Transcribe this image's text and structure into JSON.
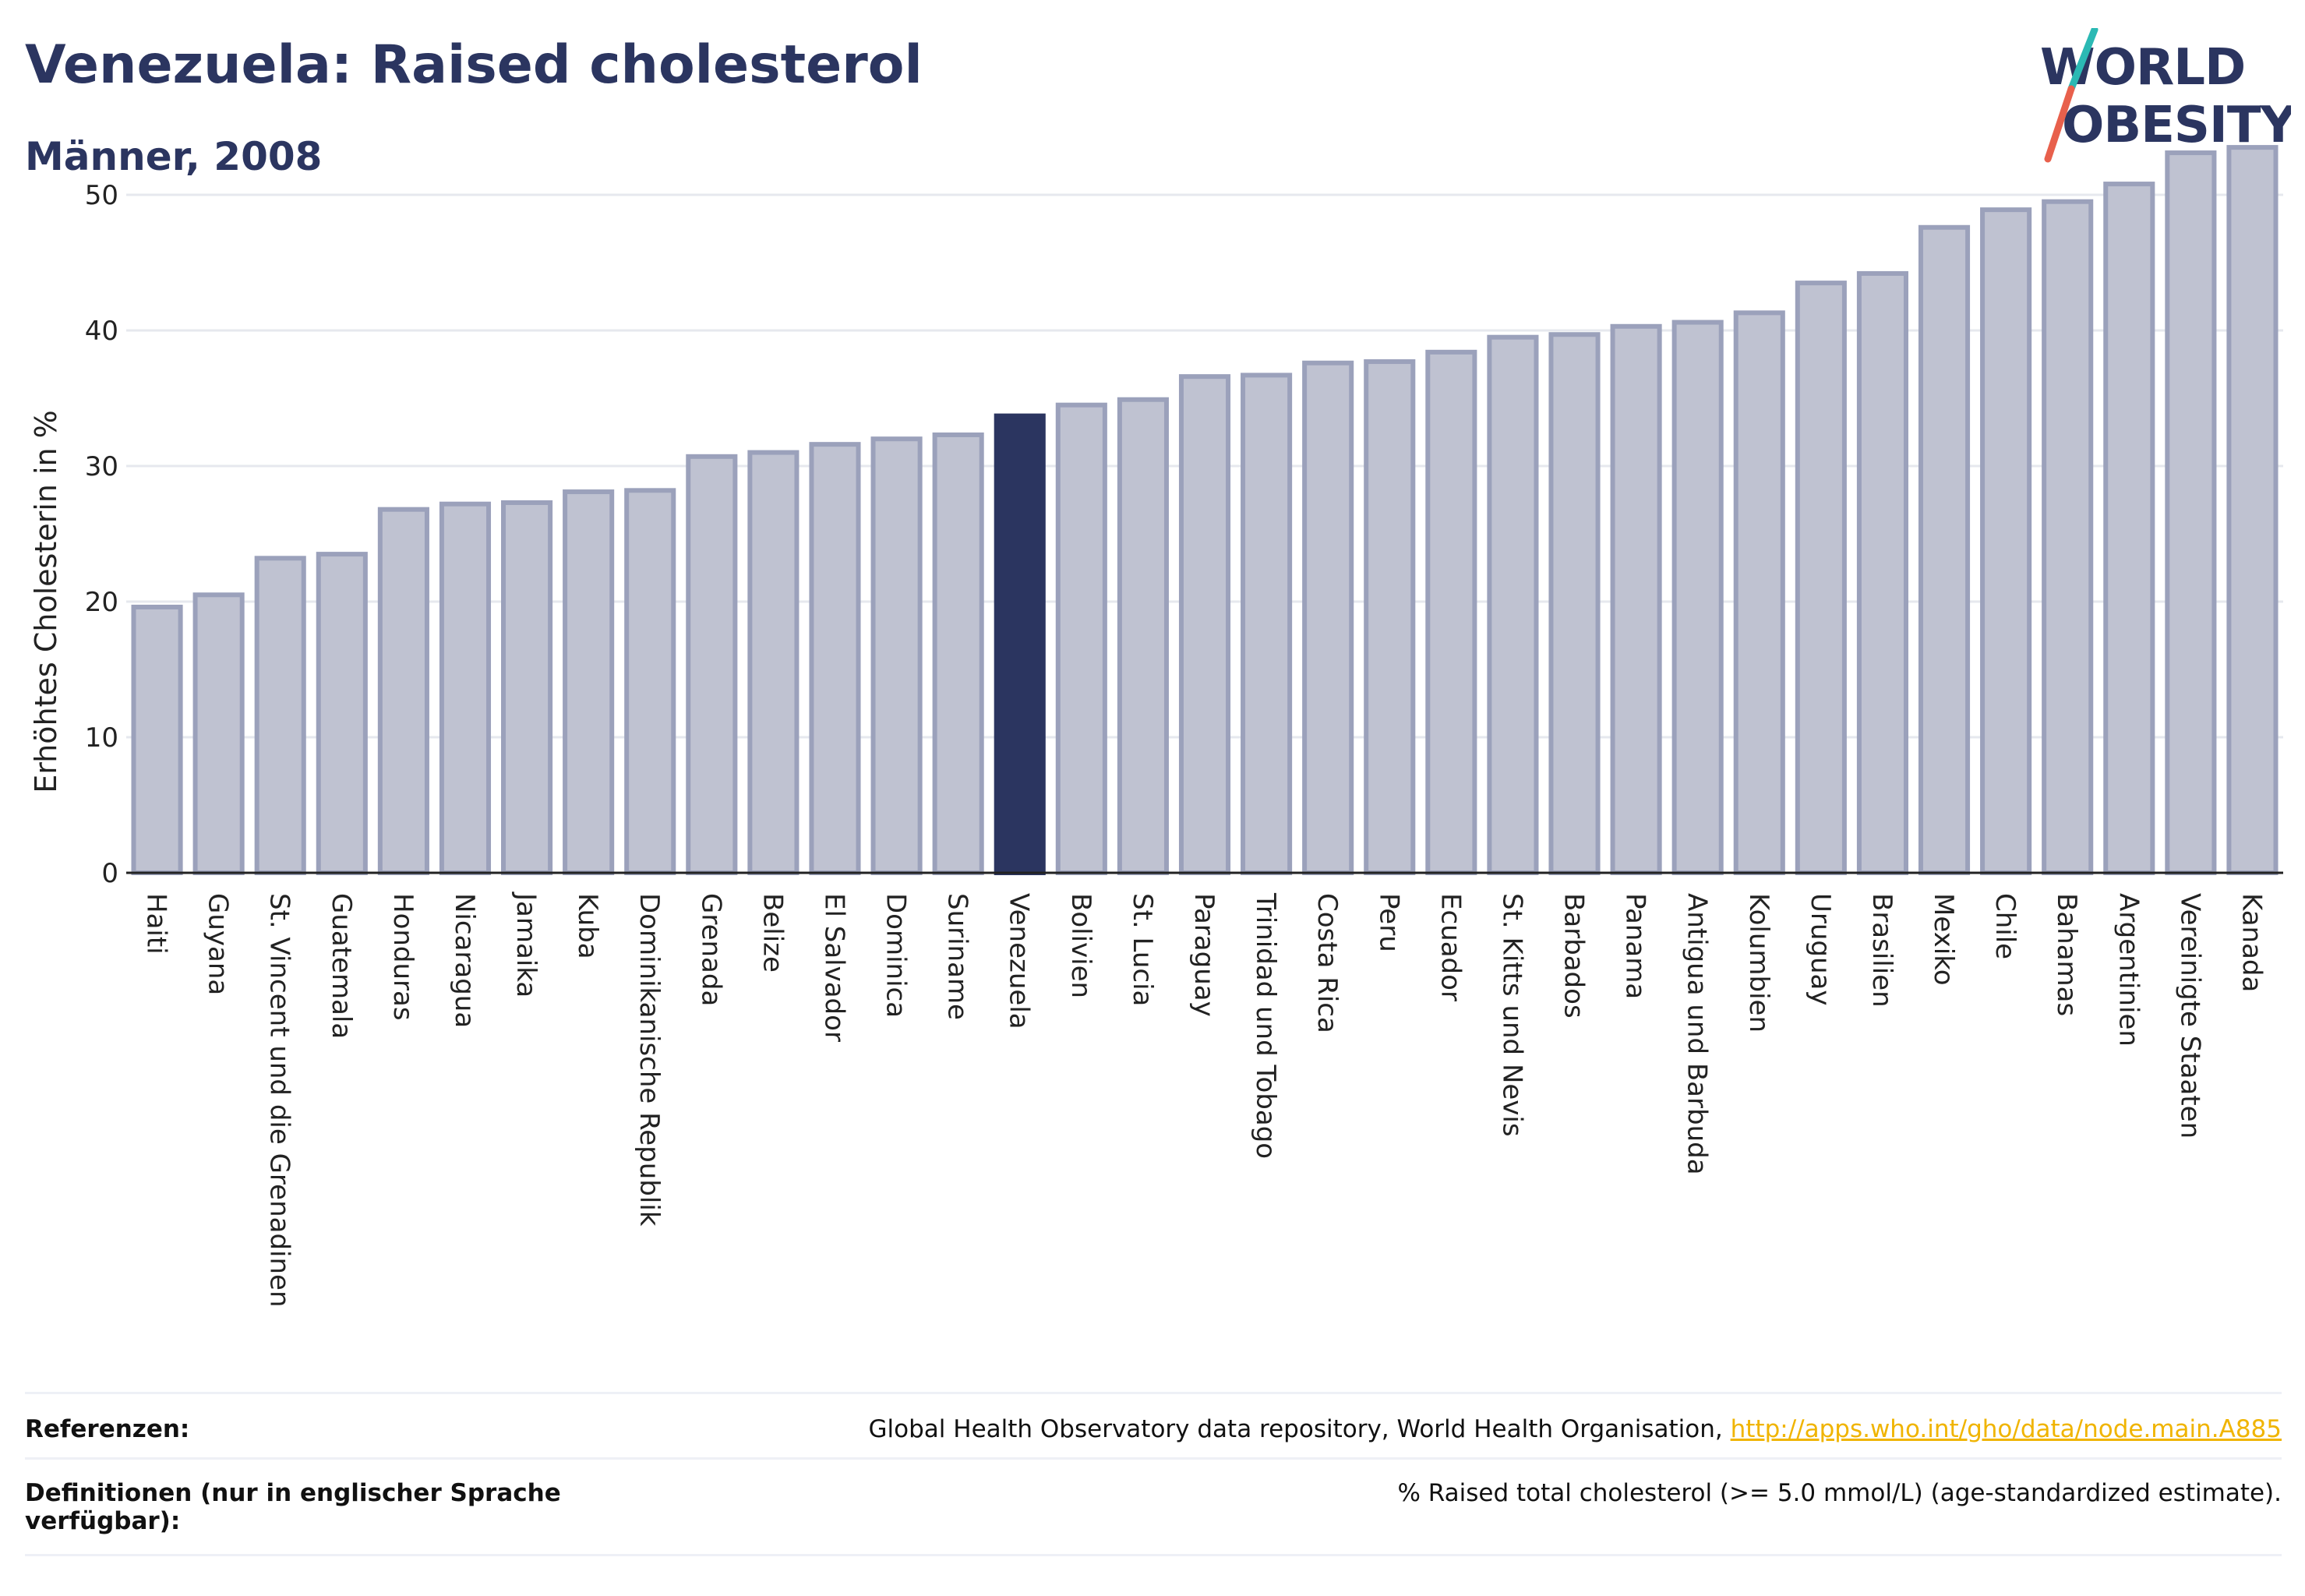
{
  "header": {
    "title": "Venezuela: Raised cholesterol",
    "subtitle": "Männer, 2008",
    "logo_line1": "WORLD",
    "logo_line2": "OBESITY"
  },
  "colors": {
    "bar": "#bfc2d1",
    "bar_stroke": "#9ba1bb",
    "highlight": "#2b3560",
    "accent_teal": "#2bb9b4",
    "accent_red": "#e8604c",
    "link": "#f0b400"
  },
  "chart_data": {
    "type": "bar",
    "ylabel": "Erhöhtes Cholesterin in %",
    "ylim": [
      0,
      55
    ],
    "yticks": [
      0,
      10,
      20,
      30,
      40,
      50
    ],
    "grid": true,
    "highlight": "Venezuela",
    "categories": [
      "Haiti",
      "Guyana",
      "St. Vincent und die Grenadinen",
      "Guatemala",
      "Honduras",
      "Nicaragua",
      "Jamaika",
      "Kuba",
      "Dominikanische Republik",
      "Grenada",
      "Belize",
      "El Salvador",
      "Dominica",
      "Suriname",
      "Venezuela",
      "Bolivien",
      "St. Lucia",
      "Paraguay",
      "Trinidad und Tobago",
      "Costa Rica",
      "Peru",
      "Ecuador",
      "St. Kitts und Nevis",
      "Barbados",
      "Panama",
      "Antigua und Barbuda",
      "Kolumbien",
      "Uruguay",
      "Brasilien",
      "Mexiko",
      "Chile",
      "Bahamas",
      "Argentinien",
      "Vereinigte Staaten",
      "Kanada"
    ],
    "values": [
      19.6,
      20.5,
      23.2,
      23.5,
      26.8,
      27.2,
      27.3,
      28.1,
      28.2,
      30.7,
      31.0,
      31.6,
      32.0,
      32.3,
      33.7,
      34.5,
      34.9,
      36.6,
      36.7,
      37.6,
      37.7,
      38.4,
      39.5,
      39.7,
      40.3,
      40.6,
      41.3,
      43.5,
      44.2,
      47.6,
      48.9,
      49.5,
      50.8,
      53.1,
      53.5
    ]
  },
  "footer": {
    "references_label": "Referenzen:",
    "references_text": "Global Health Observatory data repository, World Health Organisation,",
    "references_link": "http://apps.who.int/gho/data/node.main.A885",
    "definitions_label_1": "Definitionen (nur in englischer Sprache",
    "definitions_label_2": "verfügbar):",
    "definitions_text": "% Raised total cholesterol (>= 5.0 mmol/L) (age-standardized estimate)."
  }
}
